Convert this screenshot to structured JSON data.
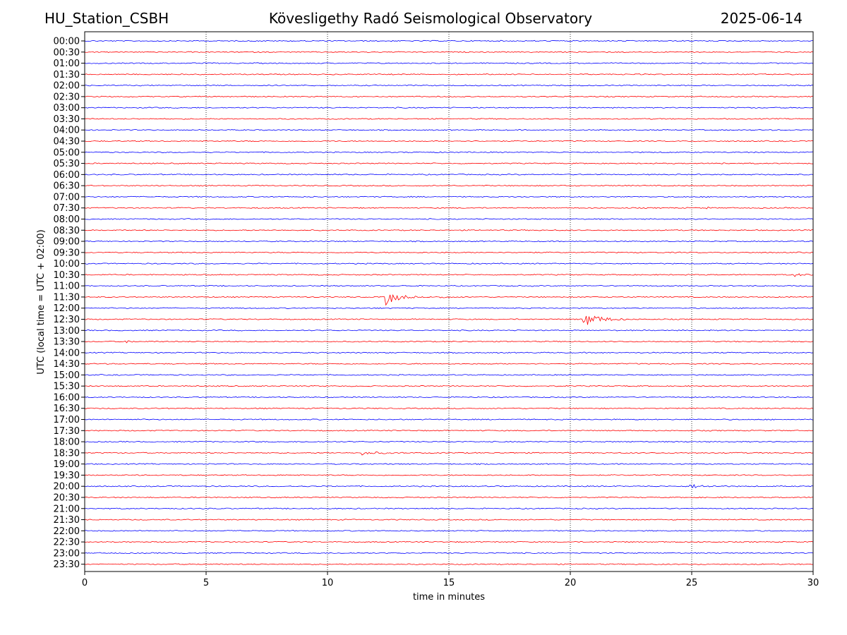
{
  "header": {
    "station": "HU_Station_CSBH",
    "observatory": "Kövesligethy Radó Seismological Observatory",
    "date": "2025-06-14"
  },
  "chart_data": {
    "type": "line",
    "title": "Kövesligethy Radó Seismological Observatory",
    "xlabel": "time in minutes",
    "ylabel": "UTC (local time = UTC + 02:00)",
    "xlim": [
      0,
      30
    ],
    "x_ticks": [
      "0",
      "5",
      "10",
      "15",
      "20",
      "25",
      "30"
    ],
    "grid_x": true,
    "rows": [
      "00:00",
      "00:30",
      "01:00",
      "01:30",
      "02:00",
      "02:30",
      "03:00",
      "03:30",
      "04:00",
      "04:30",
      "05:00",
      "05:30",
      "06:00",
      "06:30",
      "07:00",
      "07:30",
      "08:00",
      "08:30",
      "09:00",
      "09:30",
      "10:00",
      "10:30",
      "11:00",
      "11:30",
      "12:00",
      "12:30",
      "13:00",
      "13:30",
      "14:00",
      "14:30",
      "15:00",
      "15:30",
      "16:00",
      "16:30",
      "17:00",
      "17:30",
      "18:00",
      "18:30",
      "19:00",
      "19:30",
      "20:00",
      "20:30",
      "21:00",
      "21:30",
      "22:00",
      "22:30",
      "23:00",
      "23:30"
    ],
    "colors": {
      "full_hour": "#0000ff",
      "half_hour": "#ff0000"
    },
    "events": [
      {
        "row": "05:30",
        "start_min": 26.2,
        "duration_min": 0.3,
        "amplitude": 2.5
      },
      {
        "row": "07:30",
        "start_min": 25.6,
        "duration_min": 0.3,
        "amplitude": 1.5
      },
      {
        "row": "10:30",
        "start_min": 29.1,
        "duration_min": 0.9,
        "amplitude": 3.5
      },
      {
        "row": "11:30",
        "start_min": 12.35,
        "duration_min": 1.3,
        "amplitude": 13
      },
      {
        "row": "11:30",
        "start_min": 14.6,
        "duration_min": 0.6,
        "amplitude": 3
      },
      {
        "row": "12:30",
        "start_min": 20.5,
        "duration_min": 1.8,
        "amplitude": 11
      },
      {
        "row": "13:30",
        "start_min": 1.7,
        "duration_min": 0.4,
        "amplitude": 3.5
      },
      {
        "row": "18:30",
        "start_min": 11.4,
        "duration_min": 1.8,
        "amplitude": 2.5
      },
      {
        "row": "18:30",
        "start_min": 26.7,
        "duration_min": 0.5,
        "amplitude": 1.5
      },
      {
        "row": "20:00",
        "start_min": 24.9,
        "duration_min": 1.8,
        "amplitude": 2.5
      }
    ]
  }
}
